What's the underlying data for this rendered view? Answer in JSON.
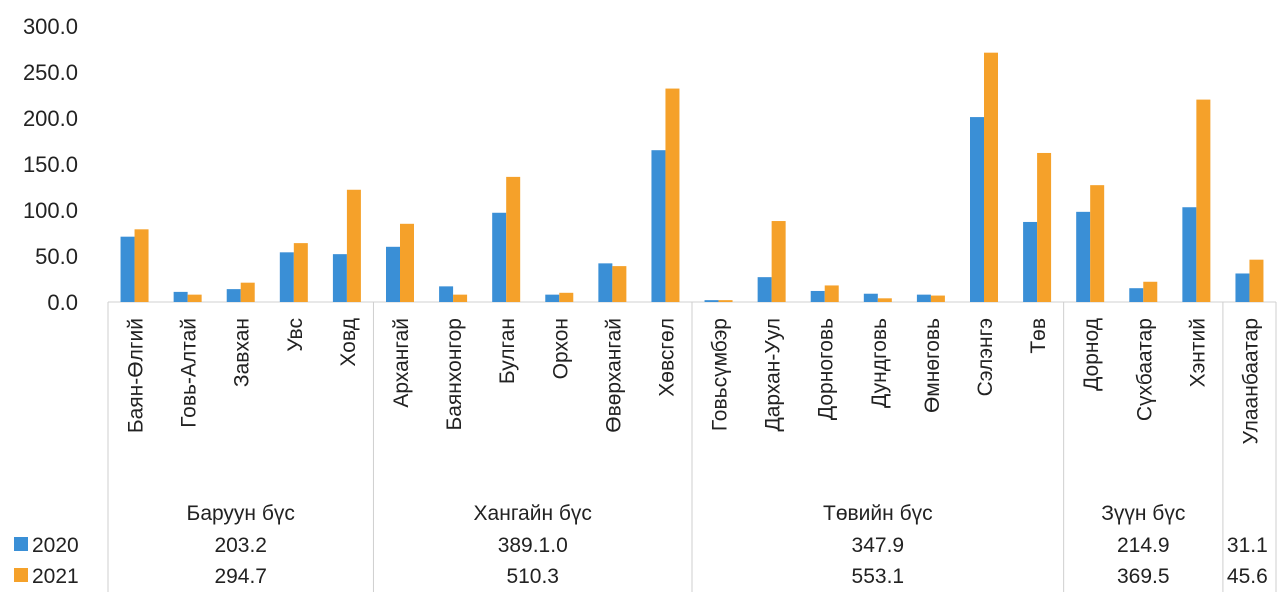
{
  "chart_data": {
    "type": "bar",
    "ylim": [
      0,
      300
    ],
    "yticks": [
      "0.0",
      "50.0",
      "100.0",
      "150.0",
      "200.0",
      "250.0",
      "300.0"
    ],
    "categories": [
      "Баян-Өлгий",
      "Говь-Алтай",
      "Завхан",
      "Увс",
      "Ховд",
      "Архангай",
      "Баянхонгор",
      "Булган",
      "Орхон",
      "Өвөрхангай",
      "Хөвсгөл",
      "Говьсүмбэр",
      "Дархан-Уул",
      "Дорноговь",
      "Дундговь",
      "Өмнөговь",
      "Сэлэнгэ",
      "Төв",
      "Дорнод",
      "Сүхбаатар",
      "Хэнтий",
      "Улаанбаатар"
    ],
    "series": [
      {
        "name": "2020",
        "color": "#3a8fd6",
        "values": [
          71,
          11,
          14,
          54,
          52,
          60,
          17,
          97,
          8,
          42,
          165,
          2,
          27,
          12,
          9,
          8,
          201,
          87,
          98,
          15,
          103,
          31
        ]
      },
      {
        "name": "2021",
        "color": "#f5a12a",
        "values": [
          79,
          8,
          21,
          64,
          122,
          85,
          8,
          136,
          10,
          39,
          232,
          2,
          88,
          18,
          4,
          7,
          271,
          162,
          127,
          22,
          220,
          46
        ]
      }
    ],
    "regions": [
      {
        "name": "Баруун бүс",
        "count": 5,
        "total_2020": "203.2",
        "total_2021": "294.7"
      },
      {
        "name": "Хангайн бүс",
        "count": 6,
        "total_2020": "389.1.0",
        "total_2021": "510.3"
      },
      {
        "name": "Төвийн бүс",
        "count": 7,
        "total_2020": "347.9",
        "total_2021": "553.1"
      },
      {
        "name": "Зүүн бүс",
        "count": 3,
        "total_2020": "214.9",
        "total_2021": "369.5"
      },
      {
        "name": "",
        "count": 1,
        "total_2020": "31.1",
        "total_2021": "45.6"
      }
    ],
    "legend": [
      {
        "label": "2020",
        "color": "#3a8fd6"
      },
      {
        "label": "2021",
        "color": "#f5a12a"
      }
    ],
    "grid": false
  }
}
